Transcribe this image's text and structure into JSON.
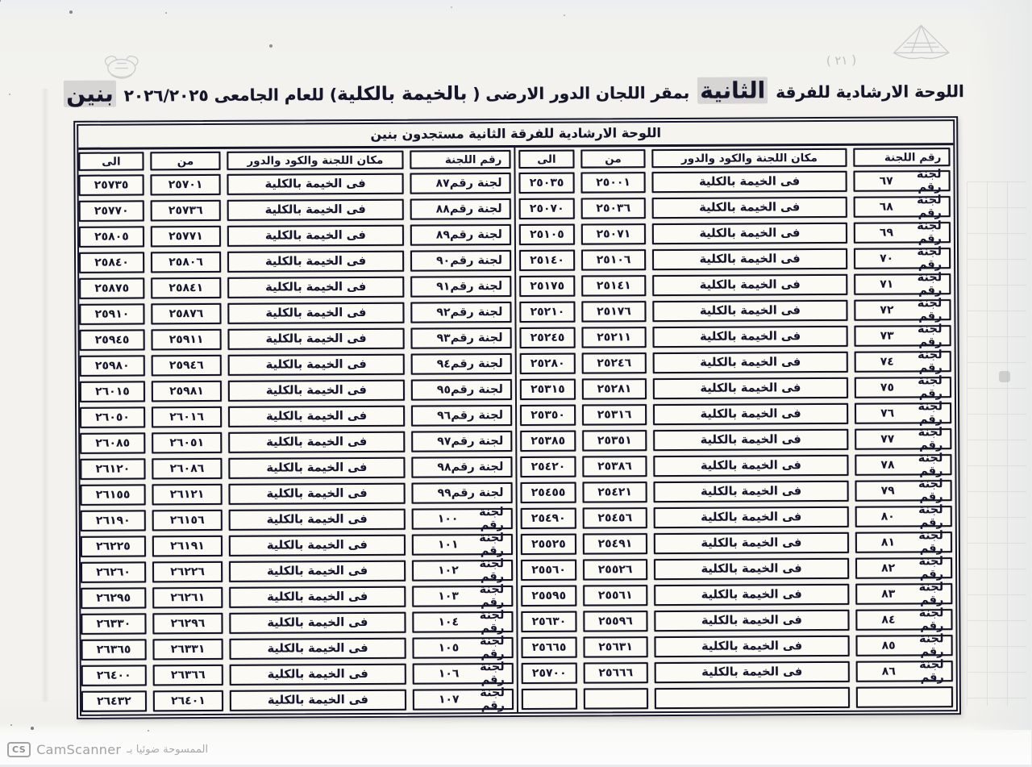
{
  "title": {
    "part1": "اللوحة الارشادية للفرقة ",
    "highlight1": "الثانية",
    "part2": " بمقر اللجان الدور الارضى ( ",
    "bold1": "بالخيمة بالكلية",
    "part3": ") للعام الجامعى ",
    "year": "٢٠٢٦/٢٠٢٥",
    "highlight2": "بنين"
  },
  "subtitle": "اللوحة الارشادية للفرقة الثانية مستجدون بنين",
  "columns": {
    "committee": "رقم اللجنة",
    "place": "مكان اللجنة والكود والدور",
    "from": "من",
    "to": "الى"
  },
  "committee_prefix": "لجنة رقم",
  "place_value": "فى الخيمة بالكلية",
  "annotations": {
    "handwritten": "( ٢١ )"
  },
  "rows": [
    {
      "right": {
        "num": "٦٧",
        "from": "٢٥٠٠١",
        "to": "٢٥٠٣٥"
      },
      "left": {
        "num": "٨٧",
        "from": "٢٥٧٠١",
        "to": "٢٥٧٣٥"
      }
    },
    {
      "right": {
        "num": "٦٨",
        "from": "٢٥٠٣٦",
        "to": "٢٥٠٧٠"
      },
      "left": {
        "num": "٨٨",
        "from": "٢٥٧٣٦",
        "to": "٢٥٧٧٠"
      }
    },
    {
      "right": {
        "num": "٦٩",
        "from": "٢٥٠٧١",
        "to": "٢٥١٠٥"
      },
      "left": {
        "num": "٨٩",
        "from": "٢٥٧٧١",
        "to": "٢٥٨٠٥"
      }
    },
    {
      "right": {
        "num": "٧٠",
        "from": "٢٥١٠٦",
        "to": "٢٥١٤٠"
      },
      "left": {
        "num": "٩٠",
        "from": "٢٥٨٠٦",
        "to": "٢٥٨٤٠"
      }
    },
    {
      "right": {
        "num": "٧١",
        "from": "٢٥١٤١",
        "to": "٢٥١٧٥"
      },
      "left": {
        "num": "٩١",
        "from": "٢٥٨٤١",
        "to": "٢٥٨٧٥"
      }
    },
    {
      "right": {
        "num": "٧٢",
        "from": "٢٥١٧٦",
        "to": "٢٥٢١٠"
      },
      "left": {
        "num": "٩٢",
        "from": "٢٥٨٧٦",
        "to": "٢٥٩١٠"
      }
    },
    {
      "right": {
        "num": "٧٣",
        "from": "٢٥٢١١",
        "to": "٢٥٢٤٥"
      },
      "left": {
        "num": "٩٣",
        "from": "٢٥٩١١",
        "to": "٢٥٩٤٥"
      }
    },
    {
      "right": {
        "num": "٧٤",
        "from": "٢٥٢٤٦",
        "to": "٢٥٢٨٠"
      },
      "left": {
        "num": "٩٤",
        "from": "٢٥٩٤٦",
        "to": "٢٥٩٨٠"
      }
    },
    {
      "right": {
        "num": "٧٥",
        "from": "٢٥٢٨١",
        "to": "٢٥٣١٥"
      },
      "left": {
        "num": "٩٥",
        "from": "٢٥٩٨١",
        "to": "٢٦٠١٥"
      }
    },
    {
      "right": {
        "num": "٧٦",
        "from": "٢٥٣١٦",
        "to": "٢٥٣٥٠"
      },
      "left": {
        "num": "٩٦",
        "from": "٢٦٠١٦",
        "to": "٢٦٠٥٠"
      }
    },
    {
      "right": {
        "num": "٧٧",
        "from": "٢٥٣٥١",
        "to": "٢٥٣٨٥"
      },
      "left": {
        "num": "٩٧",
        "from": "٢٦٠٥١",
        "to": "٢٦٠٨٥"
      }
    },
    {
      "right": {
        "num": "٧٨",
        "from": "٢٥٣٨٦",
        "to": "٢٥٤٢٠"
      },
      "left": {
        "num": "٩٨",
        "from": "٢٦٠٨٦",
        "to": "٢٦١٢٠"
      }
    },
    {
      "right": {
        "num": "٧٩",
        "from": "٢٥٤٢١",
        "to": "٢٥٤٥٥"
      },
      "left": {
        "num": "٩٩",
        "from": "٢٦١٢١",
        "to": "٢٦١٥٥"
      }
    },
    {
      "right": {
        "num": "٨٠",
        "from": "٢٥٤٥٦",
        "to": "٢٥٤٩٠"
      },
      "left": {
        "num": "١٠٠",
        "from": "٢٦١٥٦",
        "to": "٢٦١٩٠"
      }
    },
    {
      "right": {
        "num": "٨١",
        "from": "٢٥٤٩١",
        "to": "٢٥٥٢٥"
      },
      "left": {
        "num": "١٠١",
        "from": "٢٦١٩١",
        "to": "٢٦٢٢٥"
      }
    },
    {
      "right": {
        "num": "٨٢",
        "from": "٢٥٥٢٦",
        "to": "٢٥٥٦٠"
      },
      "left": {
        "num": "١٠٢",
        "from": "٢٦٢٢٦",
        "to": "٢٦٢٦٠"
      }
    },
    {
      "right": {
        "num": "٨٣",
        "from": "٢٥٥٦١",
        "to": "٢٥٥٩٥"
      },
      "left": {
        "num": "١٠٣",
        "from": "٢٦٢٦١",
        "to": "٢٦٢٩٥"
      }
    },
    {
      "right": {
        "num": "٨٤",
        "from": "٢٥٥٩٦",
        "to": "٢٥٦٣٠"
      },
      "left": {
        "num": "١٠٤",
        "from": "٢٦٢٩٦",
        "to": "٢٦٣٣٠"
      }
    },
    {
      "right": {
        "num": "٨٥",
        "from": "٢٥٦٣١",
        "to": "٢٥٦٦٥"
      },
      "left": {
        "num": "١٠٥",
        "from": "٢٦٣٣١",
        "to": "٢٦٣٦٥"
      }
    },
    {
      "right": {
        "num": "٨٦",
        "from": "٢٥٦٦٦",
        "to": "٢٥٧٠٠"
      },
      "left": {
        "num": "١٠٦",
        "from": "٢٦٣٦٦",
        "to": "٢٦٤٠٠"
      }
    },
    {
      "right": null,
      "left": {
        "num": "١٠٧",
        "from": "٢٦٤٠١",
        "to": "٢٦٤٣٢"
      }
    }
  ],
  "footer": {
    "cs": "CS",
    "camscanner": "CamScanner",
    "scanned_with": "الممسوحة ضوئيا بـ"
  },
  "colors": {
    "ink": "#15152a",
    "paper": "#f3f2ee",
    "cell": "#fbfaf5",
    "footer_gray": "#9b9da0"
  }
}
